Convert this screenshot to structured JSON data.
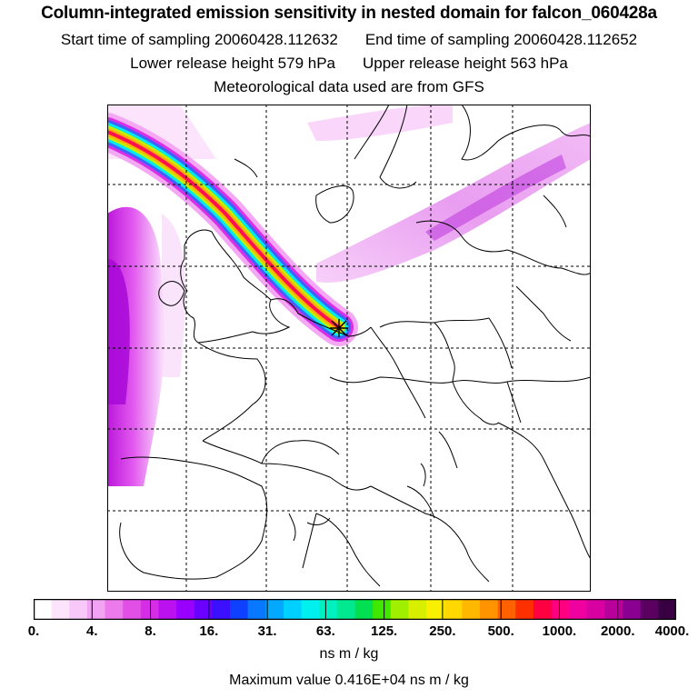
{
  "title": "Column-integrated emission sensitivity in nested domain for falcon_060428a",
  "start_time": "Start time of sampling 20060428.112632",
  "end_time": "End time of sampling 20060428.112652",
  "lower_release": "Lower release height  579 hPa",
  "upper_release": "Upper release height  563 hPa",
  "met_data": "Meteorological data used are from GFS",
  "colorbar": {
    "ticks": [
      "0.",
      "4.",
      "8.",
      "16.",
      "31.",
      "63.",
      "125.",
      "250.",
      "500.",
      "1000.",
      "2000.",
      "4000."
    ],
    "colors": [
      "#ffffff",
      "#fce4fc",
      "#f8c8f8",
      "#f3a3f3",
      "#ec7aec",
      "#e24fe6",
      "#d62ee6",
      "#bb10f0",
      "#9a00ff",
      "#6a00ff",
      "#3a10ff",
      "#1040ff",
      "#0878ff",
      "#04a8ff",
      "#00d0ff",
      "#00f0f0",
      "#00f0c0",
      "#00e890",
      "#00e050",
      "#40e800",
      "#a0ee00",
      "#d8f000",
      "#f8f000",
      "#ffd800",
      "#ffb800",
      "#ff9400",
      "#ff6000",
      "#ff3000",
      "#ff0040",
      "#ff0080",
      "#f000a0",
      "#d800a0",
      "#b8009a",
      "#8a0090",
      "#5a0060",
      "#380040"
    ]
  },
  "unit": "ns m / kg",
  "max_value": "Maximum value  0.416E+04 ns m / kg",
  "legend_title": "",
  "colors": {
    "frame": "#000000",
    "grid": "#000000"
  }
}
